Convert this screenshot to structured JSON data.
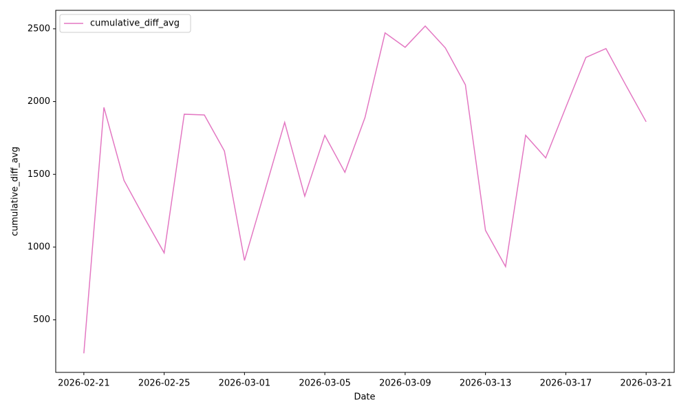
{
  "chart_data": {
    "type": "line",
    "xlabel": "Date",
    "ylabel": "cumulative_diff_avg",
    "x": [
      "2026-02-21",
      "2026-02-22",
      "2026-02-23",
      "2026-02-24",
      "2026-02-25",
      "2026-02-26",
      "2026-02-27",
      "2026-02-28",
      "2026-03-01",
      "2026-03-02",
      "2026-03-03",
      "2026-03-04",
      "2026-03-05",
      "2026-03-06",
      "2026-03-07",
      "2026-03-08",
      "2026-03-09",
      "2026-03-10",
      "2026-03-11",
      "2026-03-12",
      "2026-03-13",
      "2026-03-14",
      "2026-03-15",
      "2026-03-16",
      "2026-03-17",
      "2026-03-18",
      "2026-03-19",
      "2026-03-20",
      "2026-03-21"
    ],
    "series": [
      {
        "name": "cumulative_diff_avg",
        "color": "#e377c2",
        "values": [
          270,
          1960,
          1458,
          1205,
          960,
          1913,
          1908,
          1660,
          908,
          1380,
          1857,
          1350,
          1768,
          1514,
          1890,
          2472,
          2373,
          2519,
          2369,
          2115,
          1115,
          866,
          1768,
          1613,
          1960,
          2303,
          2364,
          2110,
          1861
        ]
      }
    ],
    "ylim": [
      139,
      2627
    ],
    "yticks": [
      500,
      1000,
      1500,
      2000,
      2500
    ],
    "xticks": [
      "2026-02-21",
      "2026-02-25",
      "2026-03-01",
      "2026-03-05",
      "2026-03-09",
      "2026-03-13",
      "2026-03-17",
      "2026-03-21"
    ],
    "legend": "upper left"
  }
}
